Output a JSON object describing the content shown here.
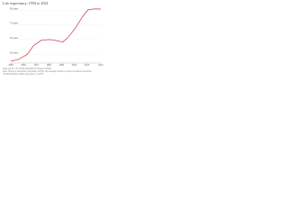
{
  "chart_data": {
    "type": "line",
    "title": "Life expectancy, 1950 to 2021",
    "x": [
      1950,
      1956,
      1963,
      1968,
      1974,
      1980,
      1985,
      1991,
      1995,
      2001,
      2007,
      2011,
      2015,
      2021
    ],
    "series": [
      {
        "name": "Life expectancy",
        "color": "#d1495b",
        "values": [
          45.2,
          46.4,
          49.9,
          55.9,
          59.4,
          60,
          59.4,
          58.3,
          61.2,
          67.8,
          76.1,
          80.2,
          80.8,
          80.8
        ]
      }
    ],
    "xlim": [
      1950,
      2021
    ],
    "xticks": [
      1950,
      1960,
      1970,
      1980,
      1990,
      2000,
      2010,
      2021
    ],
    "ylim": [
      44,
      82
    ],
    "yticks": [
      {
        "value": 50,
        "label": "50 years"
      },
      {
        "value": 60,
        "label": "60 years"
      },
      {
        "value": 70,
        "label": "70 years"
      },
      {
        "value": 80,
        "label": "80 years"
      }
    ],
    "grid": true,
    "source": "Data source: UN, World Population Prospects (2022)",
    "note": "Note: Shown is period life expectancy at birth, the average number of years a newborn would live.",
    "credit": "OurWorldinData.org/life-expectancy | CC BY"
  }
}
